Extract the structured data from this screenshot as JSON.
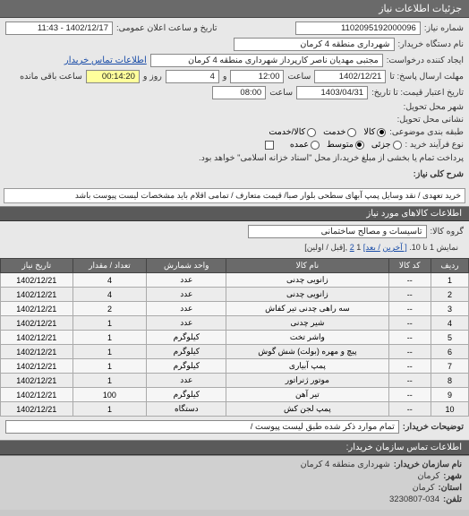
{
  "topbar": {
    "title": "جزئیات اطلاعات نیاز"
  },
  "header": {
    "need_no_lbl": "شماره نیاز:",
    "need_no": "1102095192000096",
    "ann_time_lbl": "تاریخ و ساعت اعلان عمومی:",
    "ann_time": "1402/12/17 - 11:43",
    "buyer_lbl": "نام دستگاه خریدار:",
    "buyer": "شهرداری منطقه 4 کرمان",
    "requester_lbl": "ایجاد کننده درخواست:",
    "requester": "مجتبی مهدیان ناصر کارپرداز شهرداری منطقه 4 کرمان",
    "contact_link": "اطلاعات تماس خریدار",
    "deadline_send_lbl": "مهلت ارسال پاسخ: تا",
    "deadline_send_date": "1402/12/21",
    "time_lbl": "ساعت",
    "deadline_send_time": "12:00",
    "and_lbl": "و",
    "days": "4",
    "day_lbl": "روز و",
    "remain": "00:14:20",
    "remain_lbl": "ساعت باقی مانده",
    "validity_lbl": "تاریخ اعتبار قیمت: تا تاریخ:",
    "validity_date": "1403/04/31",
    "validity_time": "08:00",
    "delivery_city_lbl": "شهر محل تحویل:",
    "delivery_addr_lbl": "نشانی محل تحویل:",
    "group_lbl": "طبقه بندی موضوعی:",
    "g_goods": "کالا",
    "g_service": "خدمت",
    "g_items": "کالا/خدمت",
    "proc_lbl": "نوع فرآیند خرید :",
    "p_low": "جزئی",
    "p_mid": "متوسط",
    "p_big": "عمده",
    "proc_note": "پرداخت تمام یا بخشی از مبلغ خرید،از محل \"اسناد خزانه اسلامی\" خواهد بود.",
    "desc_lbl": "شرح کلی نیاز:",
    "desc": "خرید تعهدی / نقد وسایل پمپ آبهای سطحی بلوار صبا/ قیمت متعارف / تمامی اقلام باید مشخصات لیست پیوست باشد"
  },
  "goods_header": "اطلاعات کالاهای مورد نیاز",
  "goods_group_lbl": "گروه کالا:",
  "goods_group": "تاسیسات و مصالح ساختمانی",
  "pager": {
    "pre": "نمایش 1 تا 10.",
    "last": "[ آخرین",
    "next": "/ بعد]",
    "p1": "1",
    "p2": "2",
    "post": ",[قبل / اولین]"
  },
  "cols": [
    "ردیف",
    "کد کالا",
    "نام کالا",
    "واحد شمارش",
    "تعداد / مقدار",
    "تاریخ نیاز"
  ],
  "rows": [
    [
      "1",
      "--",
      "زانویی چدنی",
      "عدد",
      "4",
      "1402/12/21"
    ],
    [
      "2",
      "--",
      "زانویی چدنی",
      "عدد",
      "4",
      "1402/12/21"
    ],
    [
      "3",
      "--",
      "سه راهی چدنی تیر کفاش",
      "عدد",
      "2",
      "1402/12/21"
    ],
    [
      "4",
      "--",
      "شیر چدنی",
      "عدد",
      "1",
      "1402/12/21"
    ],
    [
      "5",
      "--",
      "واشر تخت",
      "کیلوگرم",
      "1",
      "1402/12/21"
    ],
    [
      "6",
      "--",
      "پیچ و مهره (بولت) شش گوش",
      "کیلوگرم",
      "1",
      "1402/12/21"
    ],
    [
      "7",
      "--",
      "پمپ آبیاری",
      "کیلوگرم",
      "1",
      "1402/12/21"
    ],
    [
      "8",
      "--",
      "موتور ژنراتور",
      "عدد",
      "1",
      "1402/12/21"
    ],
    [
      "9",
      "--",
      "تیر آهن",
      "کیلوگرم",
      "100",
      "1402/12/21"
    ],
    [
      "10",
      "--",
      "پمپ لجن کش",
      "دستگاه",
      "1",
      "1402/12/21"
    ]
  ],
  "notes_lbl": "توضیحات خریدار:",
  "notes": "تمام موارد ذکر شده طبق لیست پیوست /",
  "footer_header": "اطلاعات تماس سازمان خریدار:",
  "footer": {
    "org_lbl": "نام سازمان خریدار:",
    "org": "شهرداری منطقه 4 کرمان",
    "city_lbl": "شهر:",
    "city": "کرمان",
    "prov_lbl": "استان:",
    "prov": "کرمان",
    "tel_lbl": "تلفن:",
    "tel": "3230807-034"
  }
}
